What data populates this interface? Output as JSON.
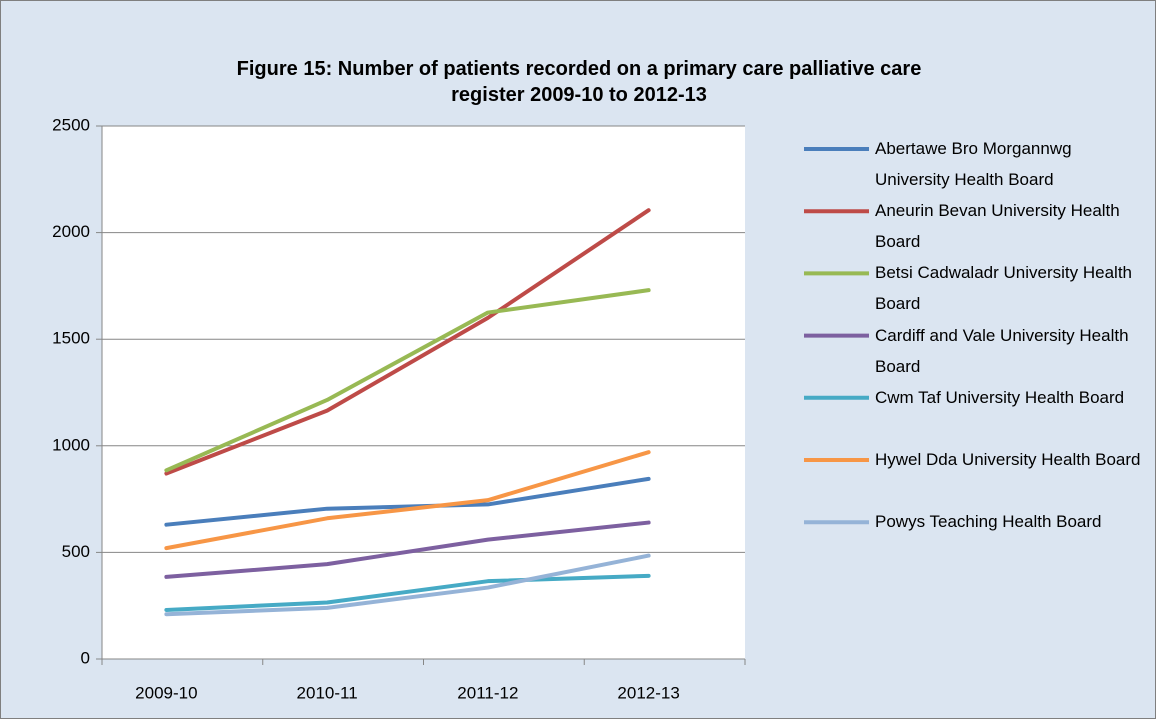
{
  "chart_data": {
    "type": "line",
    "title": "Figure 15: Number of patients recorded on a primary care palliative care register 2009-10 to 2012-13",
    "categories": [
      "2009-10",
      "2010-11",
      "2011-12",
      "2012-13"
    ],
    "series": [
      {
        "name": "Abertawe Bro Morgannwg University Health Board",
        "color": "#4a7ebb",
        "values": [
          630,
          705,
          725,
          845
        ]
      },
      {
        "name": "Aneurin Bevan University Health Board",
        "color": "#be4b48",
        "values": [
          870,
          1165,
          1600,
          2105
        ]
      },
      {
        "name": "Betsi Cadwaladr University Health Board",
        "color": "#98b954",
        "values": [
          885,
          1215,
          1625,
          1730
        ]
      },
      {
        "name": "Cardiff and Vale University Health Board",
        "color": "#7d60a0",
        "values": [
          385,
          445,
          560,
          640
        ]
      },
      {
        "name": "Cwm Taf University Health Board",
        "color": "#46aac5",
        "values": [
          230,
          265,
          365,
          390
        ]
      },
      {
        "name": "Hywel Dda University Health Board",
        "color": "#f79646",
        "values": [
          520,
          660,
          745,
          970
        ]
      },
      {
        "name": "Powys Teaching Health Board",
        "color": "#95b3d7",
        "values": [
          210,
          240,
          335,
          485
        ]
      }
    ],
    "ylim": [
      0,
      2500
    ],
    "yticks": [
      0,
      500,
      1000,
      1500,
      2000,
      2500
    ],
    "grid": true,
    "legend": "right"
  }
}
